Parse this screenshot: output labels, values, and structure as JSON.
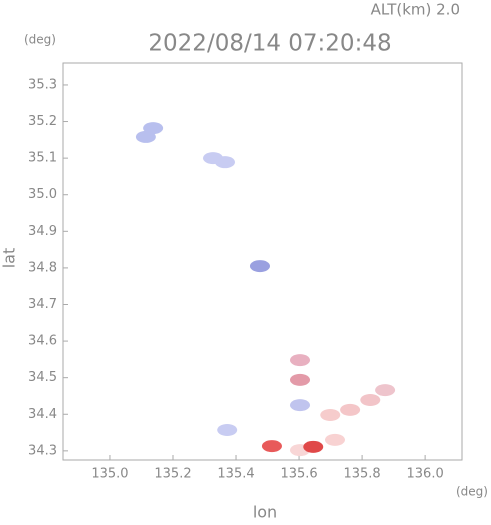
{
  "chart_data": {
    "type": "scatter",
    "title": "2022/08/14 07:20:48",
    "subtitle": "ALT(km) 2.0",
    "y_unit": "(deg)",
    "x_unit": "(deg)",
    "xlabel": "lon",
    "ylabel": "lat",
    "xlim": [
      134.851,
      136.117
    ],
    "ylim": [
      34.275,
      35.36
    ],
    "xticks": [
      {
        "value": 135.0,
        "label": "135.0"
      },
      135.2,
      135.4,
      135.6,
      135.8,
      {
        "value": 136.0,
        "label": "136.0"
      }
    ],
    "yticks": [
      34.3,
      34.4,
      34.5,
      34.6,
      34.7,
      34.8,
      34.9,
      {
        "value": 35.0,
        "label": "35.0"
      },
      35.1,
      35.2,
      35.3
    ],
    "x": [
      135.137,
      135.114,
      135.327,
      135.365,
      135.476,
      135.372,
      135.603,
      135.603,
      135.603,
      135.699,
      135.762,
      135.826,
      135.873,
      135.714,
      135.603,
      135.514,
      135.645
    ],
    "values": [
      35.182,
      35.158,
      35.1,
      35.089,
      34.805,
      34.357,
      34.548,
      34.494,
      34.425,
      34.398,
      34.412,
      34.439,
      34.466,
      34.33,
      34.302,
      34.313,
      34.311
    ],
    "colors": [
      "#b8bfee",
      "#b8bfee",
      "#c8ccf2",
      "#c8ccf2",
      "#9aa0e0",
      "#c8ccf2",
      "#e8b0c0",
      "#e39aa8",
      "#c0c4ee",
      "#f6cccc",
      "#f4c6c8",
      "#f2c4c8",
      "#eec4cc",
      "#f8d2d2",
      "#f8d6d6",
      "#e85a5a",
      "#e04848"
    ],
    "grid": false
  }
}
